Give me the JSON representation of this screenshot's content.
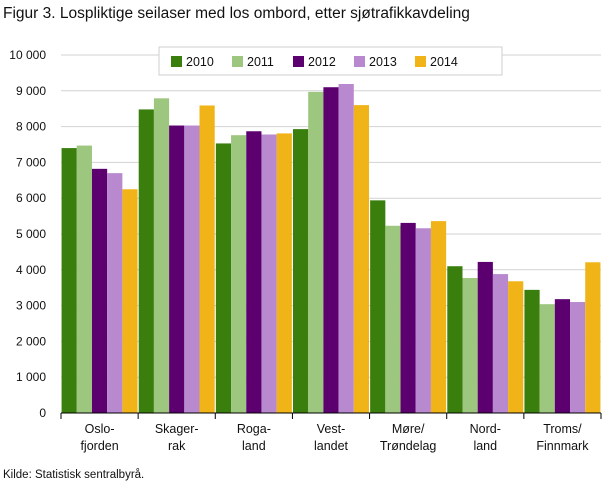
{
  "figure": {
    "title": "Figur 3. Lospliktige seilaser med los ombord, etter sjøtrafikkavdeling",
    "source": "Kilde: Statistisk sentralbyrå."
  },
  "chart_data": {
    "type": "bar",
    "title": "Figur 3. Lospliktige seilaser med los ombord, etter sjøtrafikkavdeling",
    "xlabel": "",
    "ylabel": "",
    "ylim": [
      0,
      10000
    ],
    "yticks": [
      0,
      1000,
      2000,
      3000,
      4000,
      5000,
      6000,
      7000,
      8000,
      9000,
      10000
    ],
    "ytick_labels": [
      "0",
      "1 000",
      "2 000",
      "3 000",
      "4 000",
      "5 000",
      "6 000",
      "7 000",
      "8 000",
      "9 000",
      "10 000"
    ],
    "grid": true,
    "legend_position": "top-center",
    "categories": [
      [
        "Oslo-",
        "fjorden"
      ],
      [
        "Skager-",
        "rak"
      ],
      [
        "Roga-",
        "land"
      ],
      [
        "Vest-",
        "landet"
      ],
      [
        "Møre/",
        "Trøndelag"
      ],
      [
        "Nord-",
        "land"
      ],
      [
        "Troms/",
        "Finnmark"
      ]
    ],
    "series": [
      {
        "name": "2010",
        "color": "#3a7f0d",
        "values": [
          7400,
          8480,
          7530,
          7930,
          5940,
          4100,
          3440
        ]
      },
      {
        "name": "2011",
        "color": "#9dc67e",
        "values": [
          7470,
          8790,
          7760,
          8970,
          5230,
          3770,
          3040
        ]
      },
      {
        "name": "2012",
        "color": "#5c0070",
        "values": [
          6820,
          8030,
          7870,
          9100,
          5310,
          4220,
          3180
        ]
      },
      {
        "name": "2013",
        "color": "#b889cf",
        "values": [
          6700,
          8030,
          7780,
          9190,
          5160,
          3880,
          3100
        ]
      },
      {
        "name": "2014",
        "color": "#f0b418",
        "values": [
          6250,
          8590,
          7810,
          8600,
          5360,
          3680,
          4210
        ]
      }
    ]
  }
}
